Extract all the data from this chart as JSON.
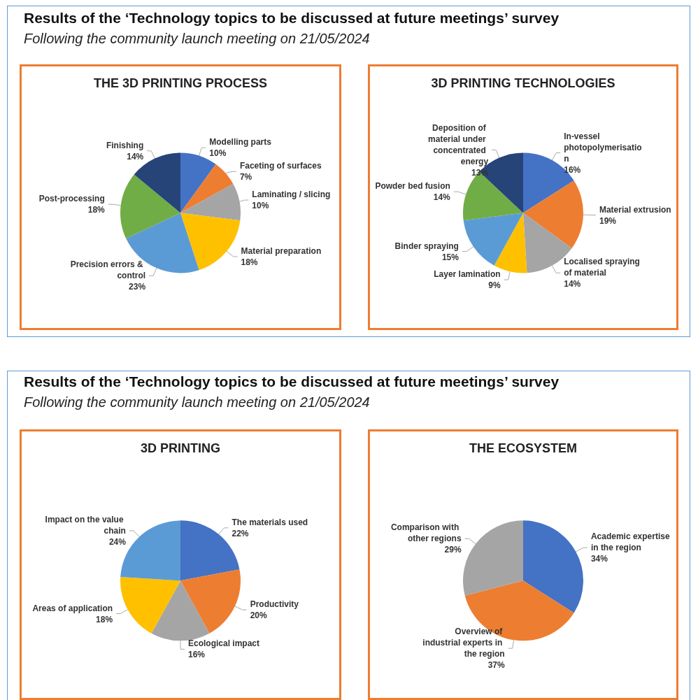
{
  "chart_data": [
    {
      "type": "pie",
      "title": "THE 3D PRINTING PROCESS",
      "annotations": [
        "Results of the ‘Technology topics to be discussed at future meetings’ survey",
        "Following the community launch meeting on 21/05/2024"
      ],
      "categories": [
        "Modelling parts",
        "Faceting of surfaces",
        "Laminating / slicing",
        "Material preparation",
        "Precision errors & control",
        "Post-processing",
        "Finishing"
      ],
      "values": [
        10,
        7,
        10,
        18,
        23,
        18,
        14
      ],
      "value_labels": [
        "10%",
        "7%",
        "10%",
        "18%",
        "23%",
        "18%",
        "14%"
      ],
      "colors": [
        "#4472c4",
        "#ed7d31",
        "#a5a5a5",
        "#ffc000",
        "#5b9bd5",
        "#70ad47",
        "#264478"
      ],
      "legend": false
    },
    {
      "type": "pie",
      "title": "3D PRINTING TECHNOLOGIES",
      "categories": [
        "In-vessel photopolymerisation",
        "Material extrusion",
        "Localised spraying of material",
        "Layer lamination",
        "Binder spraying",
        "Powder bed fusion",
        "Deposition of material under concentrated energy"
      ],
      "values": [
        16,
        19,
        14,
        9,
        15,
        14,
        13
      ],
      "value_labels": [
        "16%",
        "19%",
        "14%",
        "9%",
        "15%",
        "14%",
        "13%"
      ],
      "colors": [
        "#4472c4",
        "#ed7d31",
        "#a5a5a5",
        "#ffc000",
        "#5b9bd5",
        "#70ad47",
        "#264478"
      ],
      "legend": false
    },
    {
      "type": "pie",
      "title": "3D PRINTING",
      "annotations": [
        "Results of the ‘Technology topics to be discussed at future meetings’ survey",
        "Following the community launch meeting on 21/05/2024"
      ],
      "categories": [
        "The materials used",
        "Productivity",
        "Ecological impact",
        "Areas of application",
        "Impact on the value chain"
      ],
      "values": [
        22,
        20,
        16,
        18,
        24
      ],
      "value_labels": [
        "22%",
        "20%",
        "16%",
        "18%",
        "24%"
      ],
      "colors": [
        "#4472c4",
        "#ed7d31",
        "#a5a5a5",
        "#ffc000",
        "#5b9bd5"
      ],
      "legend": false
    },
    {
      "type": "pie",
      "title": "THE ECOSYSTEM",
      "categories": [
        "Academic expertise in the region",
        "Overview of industrial experts in the region",
        "Comparison with other regions"
      ],
      "values": [
        34,
        37,
        29
      ],
      "value_labels": [
        "34%",
        "37%",
        "29%"
      ],
      "colors": [
        "#4472c4",
        "#ed7d31",
        "#a5a5a5"
      ],
      "legend": false
    }
  ]
}
